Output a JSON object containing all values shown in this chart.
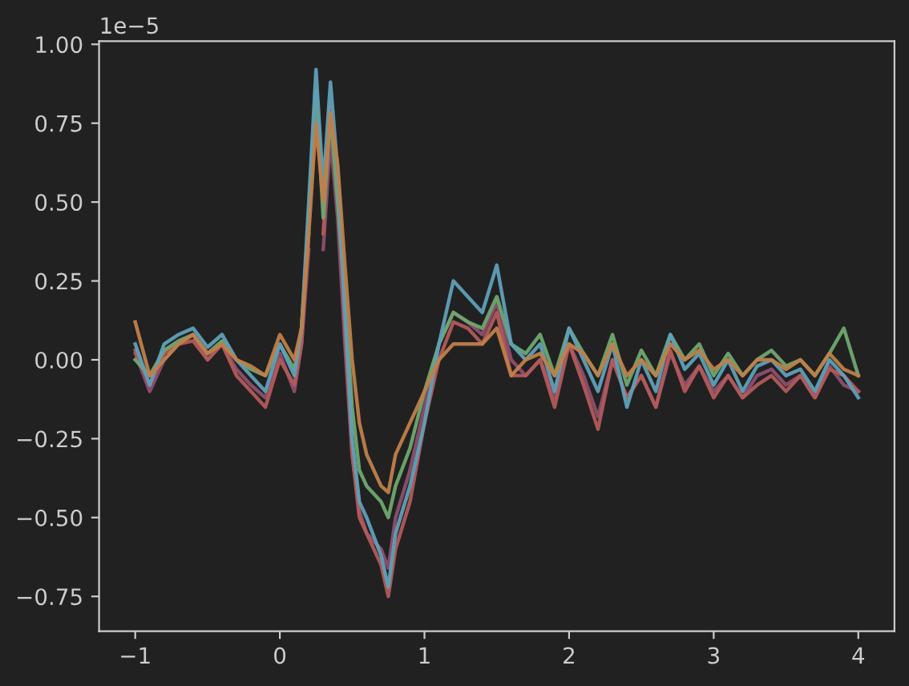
{
  "chart_data": {
    "type": "line",
    "x": [
      -1,
      -0.9,
      -0.8,
      -0.7,
      -0.6,
      -0.5,
      -0.4,
      -0.3,
      -0.2,
      -0.1,
      0,
      0.1,
      0.15,
      0.2,
      0.25,
      0.3,
      0.35,
      0.4,
      0.45,
      0.5,
      0.55,
      0.6,
      0.7,
      0.75,
      0.8,
      0.9,
      1,
      1.1,
      1.2,
      1.3,
      1.4,
      1.5,
      1.6,
      1.7,
      1.8,
      1.9,
      2,
      2.1,
      2.2,
      2.3,
      2.4,
      2.5,
      2.6,
      2.7,
      2.8,
      2.9,
      3,
      3.1,
      3.2,
      3.3,
      3.4,
      3.5,
      3.6,
      3.7,
      3.8,
      3.9,
      4
    ],
    "series": [
      {
        "color": "#8c4f6e",
        "values": [
          0.02,
          -0.1,
          0.0,
          0.05,
          0.08,
          0.0,
          0.05,
          -0.03,
          -0.08,
          -0.12,
          0.02,
          -0.1,
          0.05,
          0.35,
          null,
          0.35,
          0.7,
          0.45,
          0.05,
          -0.3,
          -0.48,
          -0.55,
          -0.6,
          -0.66,
          -0.5,
          -0.35,
          -0.15,
          0.05,
          0.15,
          0.12,
          0.08,
          0.18,
          0.0,
          -0.05,
          0.0,
          -0.12,
          0.05,
          -0.05,
          -0.18,
          0.0,
          -0.12,
          -0.05,
          -0.15,
          0.02,
          -0.08,
          -0.02,
          -0.1,
          -0.05,
          -0.12,
          -0.05,
          -0.03,
          -0.08,
          -0.05,
          -0.12,
          -0.02,
          -0.08,
          -0.1
        ]
      },
      {
        "color": "#b35a5a",
        "values": [
          0.03,
          -0.08,
          0.02,
          0.05,
          0.06,
          0.0,
          0.05,
          -0.05,
          -0.1,
          -0.15,
          0.0,
          -0.08,
          0.05,
          0.4,
          null,
          0.4,
          0.8,
          0.55,
          0.1,
          -0.3,
          -0.5,
          -0.55,
          -0.65,
          -0.75,
          -0.6,
          -0.45,
          -0.2,
          0.0,
          0.12,
          0.1,
          0.05,
          0.15,
          -0.05,
          -0.05,
          0.0,
          -0.15,
          0.05,
          -0.08,
          -0.22,
          0.0,
          -0.12,
          -0.05,
          -0.15,
          0.03,
          -0.1,
          -0.02,
          -0.12,
          -0.05,
          -0.12,
          -0.08,
          -0.05,
          -0.1,
          -0.05,
          -0.12,
          -0.03,
          -0.05,
          -0.1
        ]
      },
      {
        "color": "#6fa86f",
        "values": [
          0.0,
          -0.05,
          0.03,
          0.06,
          0.08,
          0.02,
          0.06,
          0.0,
          -0.03,
          -0.05,
          0.05,
          -0.03,
          0.1,
          0.45,
          0.85,
          0.45,
          0.78,
          0.5,
          0.2,
          -0.15,
          -0.35,
          -0.4,
          -0.45,
          -0.5,
          -0.4,
          -0.28,
          -0.1,
          0.05,
          0.15,
          0.12,
          0.1,
          0.2,
          0.05,
          0.02,
          0.08,
          -0.05,
          0.1,
          0.02,
          -0.05,
          0.08,
          -0.08,
          0.03,
          -0.05,
          0.08,
          0.0,
          0.05,
          -0.05,
          0.02,
          -0.05,
          0.0,
          0.03,
          -0.02,
          0.0,
          -0.05,
          0.02,
          0.1,
          -0.05
        ]
      },
      {
        "color": "#5fa0b8",
        "values": [
          0.05,
          -0.08,
          0.05,
          0.08,
          0.1,
          0.04,
          0.08,
          0.0,
          -0.05,
          -0.1,
          0.05,
          -0.05,
          0.1,
          0.5,
          0.92,
          0.55,
          0.88,
          0.6,
          0.15,
          -0.25,
          -0.45,
          -0.5,
          -0.62,
          -0.72,
          -0.55,
          -0.4,
          -0.2,
          0.05,
          0.25,
          0.2,
          0.15,
          0.3,
          0.05,
          0.0,
          0.05,
          -0.1,
          0.1,
          0.0,
          -0.1,
          0.05,
          -0.15,
          0.0,
          -0.1,
          0.08,
          -0.03,
          0.02,
          -0.08,
          0.0,
          -0.1,
          -0.02,
          0.0,
          -0.05,
          -0.03,
          -0.1,
          0.0,
          -0.05,
          -0.12
        ]
      },
      {
        "color": "#c0804a",
        "values": [
          0.12,
          -0.05,
          0.0,
          0.05,
          0.08,
          0.02,
          0.05,
          0.0,
          -0.02,
          -0.05,
          0.08,
          0.0,
          0.1,
          0.4,
          0.75,
          0.5,
          0.78,
          0.62,
          0.3,
          0.0,
          -0.2,
          -0.3,
          -0.4,
          -0.42,
          -0.3,
          -0.2,
          -0.1,
          0.0,
          0.05,
          0.05,
          0.05,
          0.1,
          -0.05,
          0.0,
          0.02,
          -0.05,
          0.05,
          0.02,
          -0.05,
          0.05,
          -0.05,
          0.0,
          -0.05,
          0.05,
          0.0,
          0.03,
          -0.03,
          0.0,
          -0.05,
          0.0,
          0.0,
          -0.03,
          0.0,
          -0.05,
          0.02,
          -0.03,
          -0.05
        ]
      }
    ],
    "xlim": [
      -1.25,
      4.25
    ],
    "xticks": [
      {
        "value": -1,
        "label": "−1"
      },
      0,
      1,
      2,
      3,
      4
    ],
    "ylim": [
      -0.86,
      1.01
    ],
    "yticks": [
      {
        "value": -0.75,
        "label": "−0.75"
      },
      {
        "value": -0.5,
        "label": "−0.50"
      },
      {
        "value": -0.25,
        "label": "−0.25"
      },
      {
        "value": 0,
        "label": "0.00"
      },
      0.25,
      {
        "value": 0.5,
        "label": "0.50"
      },
      0.75,
      {
        "value": 1,
        "label": "1.00"
      }
    ],
    "annotations": [
      "1e−5"
    ],
    "grid": false,
    "legend": false,
    "line_style": "solid"
  }
}
